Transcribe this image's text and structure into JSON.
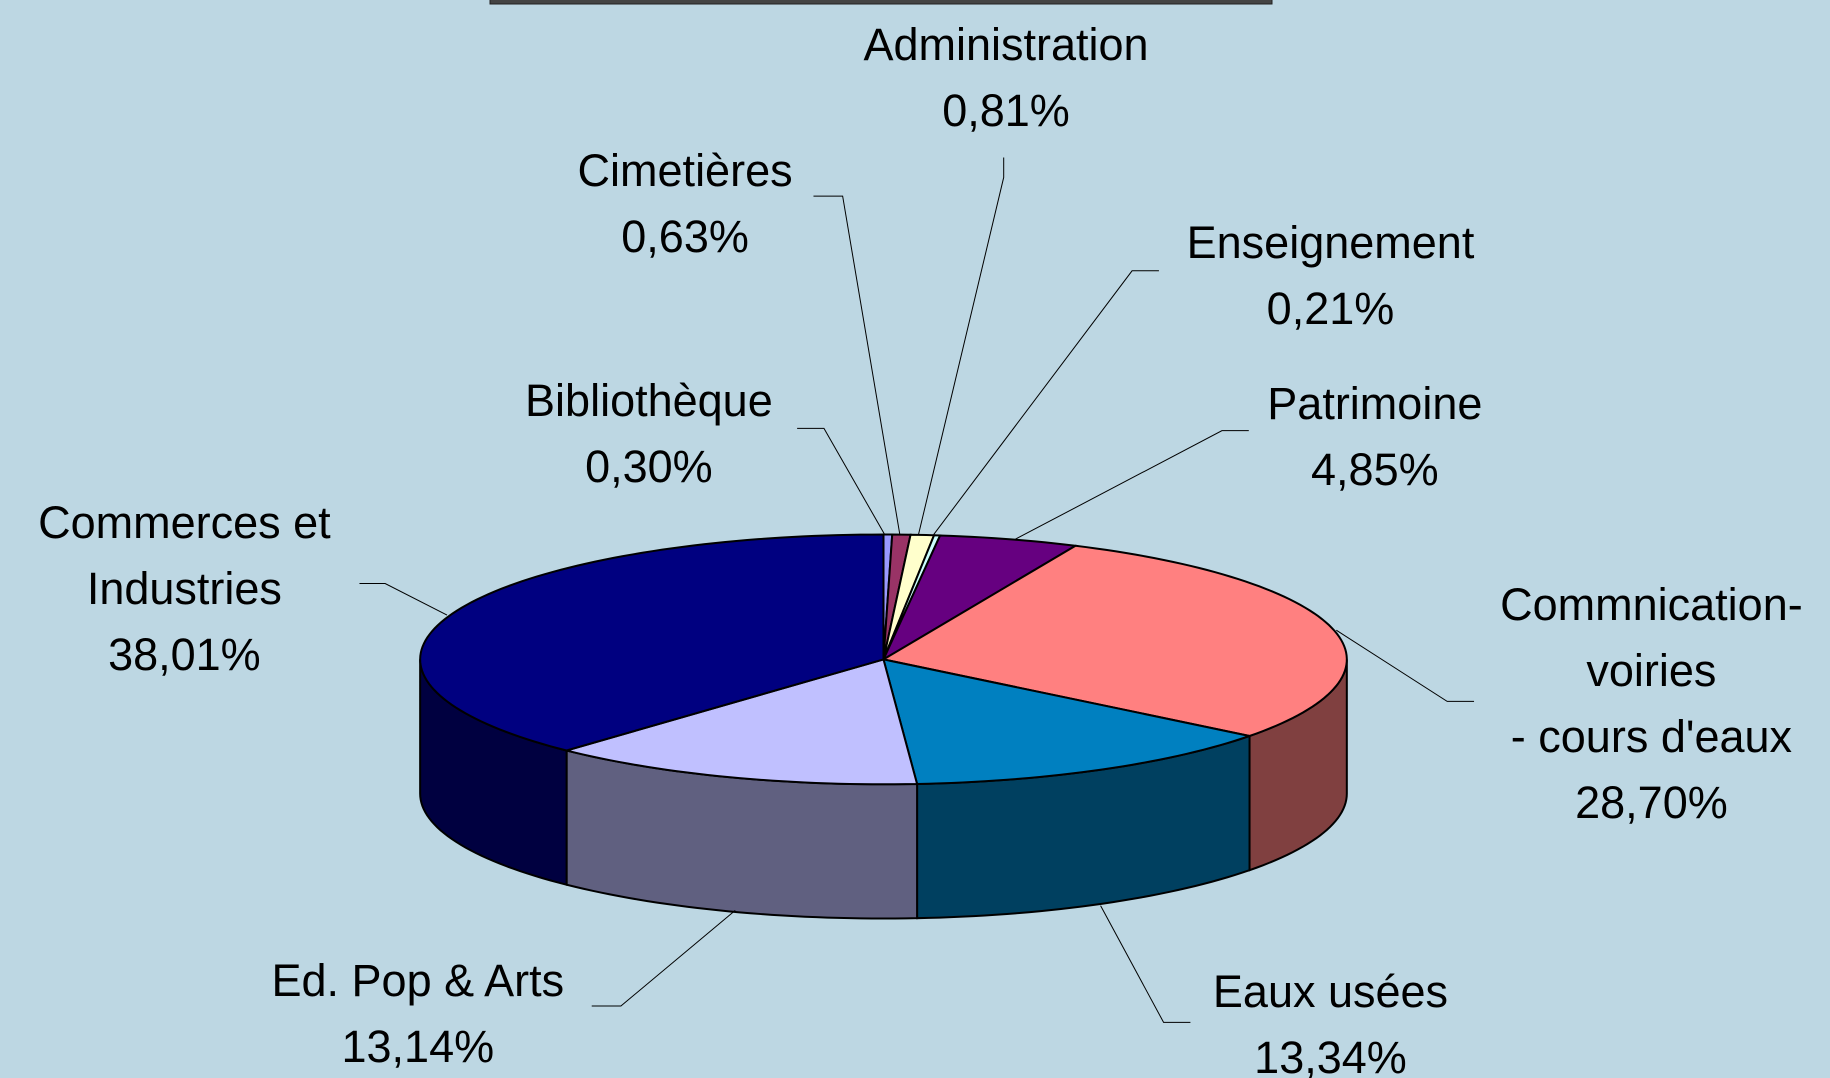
{
  "chart_data": {
    "type": "pie3d",
    "categories": [
      "Bibliothèque",
      "Cimetières",
      "Administration",
      "Enseignement",
      "Patrimoine",
      "Commnication-\nvoiries\n- cours d'eaux",
      "Eaux usées",
      "Ed. Pop & Arts",
      "Commerces et\nIndustries"
    ],
    "values": [
      0.3,
      0.63,
      0.81,
      0.21,
      4.85,
      28.7,
      13.34,
      13.14,
      38.01
    ],
    "value_labels": [
      "0,30%",
      "0,63%",
      "0,81%",
      "0,21%",
      "4,85%",
      "28,70%",
      "13,34%",
      "13,14%",
      "38,01%"
    ],
    "colors": [
      "#9999ff",
      "#993366",
      "#ffffcc",
      "#ccffff",
      "#660080",
      "#ff8080",
      "#0080c0",
      "#c0c0ff",
      "#000080"
    ]
  }
}
